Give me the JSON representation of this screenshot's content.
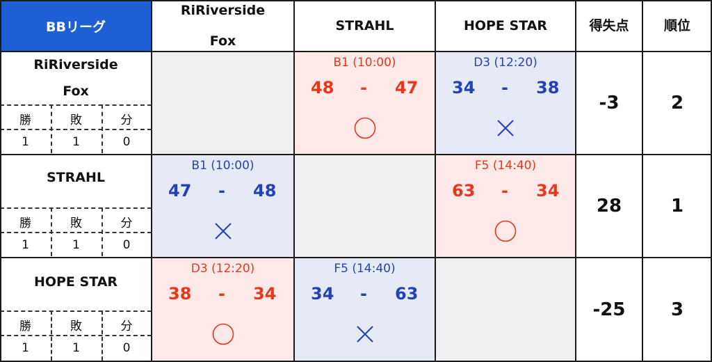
{
  "league": "BBリーグ",
  "teams": [
    {
      "name_lines": [
        "RiRiverside",
        "Fox"
      ],
      "record": {
        "w_label": "勝",
        "l_label": "敗",
        "d_label": "分",
        "w": "1",
        "l": "1",
        "d": "0"
      },
      "point_diff": "-3",
      "rank": "2"
    },
    {
      "name_lines": [
        "STRAHL"
      ],
      "record": {
        "w_label": "勝",
        "l_label": "敗",
        "d_label": "分",
        "w": "1",
        "l": "1",
        "d": "0"
      },
      "point_diff": "28",
      "rank": "1"
    },
    {
      "name_lines": [
        "HOPE STAR"
      ],
      "record": {
        "w_label": "勝",
        "l_label": "敗",
        "d_label": "分",
        "w": "1",
        "l": "1",
        "d": "0"
      },
      "point_diff": "-25",
      "rank": "3"
    }
  ],
  "headers": {
    "point_diff": "得失点",
    "rank": "順位"
  },
  "games": {
    "r0c1": {
      "meta": "B1 (10:00)",
      "home": "48",
      "sep": "-",
      "away": "47",
      "result": "win",
      "color": "#e8381c"
    },
    "r0c2": {
      "meta": "D3 (12:20)",
      "home": "34",
      "sep": "-",
      "away": "38",
      "result": "loss",
      "color": "#2442b8"
    },
    "r1c0": {
      "meta": "B1 (10:00)",
      "home": "47",
      "sep": "-",
      "away": "48",
      "result": "loss",
      "color": "#2442b8"
    },
    "r1c2": {
      "meta": "F5 (14:40)",
      "home": "63",
      "sep": "-",
      "away": "34",
      "result": "win",
      "color": "#e8381c"
    },
    "r2c0": {
      "meta": "D3 (12:20)",
      "home": "38",
      "sep": "-",
      "away": "34",
      "result": "win",
      "color": "#e8381c"
    },
    "r2c1": {
      "meta": "F5 (14:40)",
      "home": "34",
      "sep": "-",
      "away": "63",
      "result": "loss",
      "color": "#2442b8"
    }
  }
}
